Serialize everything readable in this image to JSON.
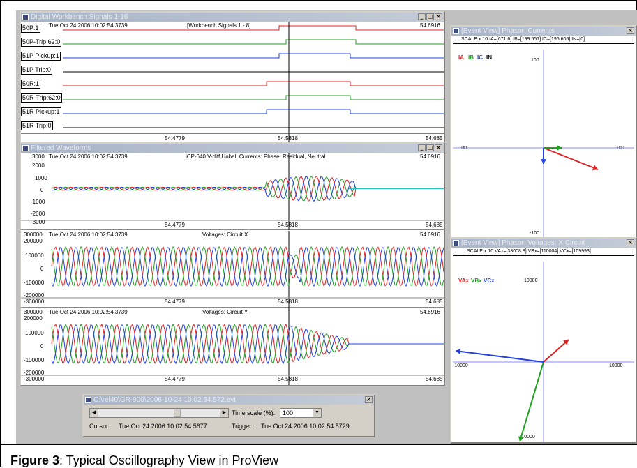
{
  "digital_window": {
    "title": "Digital Workbench Signals 1-16",
    "timestamp": "Tue Oct 24 2006 10:02:54.3739",
    "group_label": "[Workbench Signals 1 - 8]",
    "right_time": "54.6916",
    "channels": [
      "50P:1",
      "50P-Trip:62:0",
      "51P Pickup:1",
      "51P Trip:0",
      "50R:1",
      "50R-Trip:62:0",
      "51R Pickup:1",
      "51R Trip:0"
    ],
    "axis_ticks": [
      "54.4779",
      "54.5818",
      "54.685"
    ]
  },
  "filtered_window": {
    "title": "Filtered Waveforms",
    "panels": [
      {
        "timestamp": "Tue Oct 24 2006 10:02:54.3739",
        "label": "iCP-640 V-diff Unbal; Currents: Phase, Residual, Neutral",
        "right_time": "54.6916",
        "y_ticks": [
          "3000",
          "2000",
          "1000",
          "0",
          "-1000",
          "-2000",
          "-3000"
        ],
        "x_ticks": [
          "54.4779",
          "54.5818",
          "54.685"
        ]
      },
      {
        "timestamp": "Tue Oct 24 2006 10:02:54.3739",
        "label": "Voltages: Circuit X",
        "right_time": "54.6916",
        "y_ticks": [
          "300000",
          "200000",
          "100000",
          "0",
          "-100000",
          "-200000",
          "-300000"
        ],
        "x_ticks": [
          "54.4779",
          "54.5818",
          "54.685"
        ]
      },
      {
        "timestamp": "Tue Oct 24 2006 10:02:54.3739",
        "label": "Voltages: Circuit Y",
        "right_time": "54.6916",
        "y_ticks": [
          "300000",
          "200000",
          "100000",
          "0",
          "-100000",
          "-200000",
          "-300000"
        ],
        "x_ticks": [
          "54.4779",
          "54.5818",
          "54.685"
        ]
      }
    ]
  },
  "phasor_currents": {
    "title": "[Event View] Phasor: Currents",
    "header": "SCALE x 10   IA=[671.6]   IB=[199.551]   IC=[195.605]   IN=[0]",
    "legend": [
      "IA",
      "IB",
      "IC",
      "IN"
    ],
    "ticks": {
      "top": "100",
      "left": "-100",
      "right": "100",
      "bottom": "-100"
    }
  },
  "phasor_voltages": {
    "title": "[Event View] Phasor: Voltages: X Circuit",
    "header": "SCALE x 10   VAx=[33008.8]   VBx=[110004]   VCx=[109993]",
    "legend": [
      "VAx",
      "VBx",
      "VCx"
    ],
    "ticks": {
      "top": "10000",
      "left": "-10000",
      "right": "10000",
      "bottom": "-10000"
    }
  },
  "control_window": {
    "title": "C:\\rel40\\GR-900\\2006-10-24 10.02.54.572.evt",
    "time_scale_label": "Time scale (%):",
    "time_scale_value": "100",
    "cursor_label": "Cursor:",
    "cursor_value": "Tue Oct 24 2006 10:02:54.5677",
    "trigger_label": "Trigger:",
    "trigger_value": "Tue Oct 24 2006 10:02:54.5729"
  },
  "caption": {
    "label": "Figure 3",
    "text": ": Typical Oscillography View in ProView"
  },
  "colors": {
    "phase_a": "#e02020",
    "phase_b": "#20a020",
    "phase_c": "#2040e0",
    "neutral": "#000000",
    "residual": "#20c0d0"
  }
}
